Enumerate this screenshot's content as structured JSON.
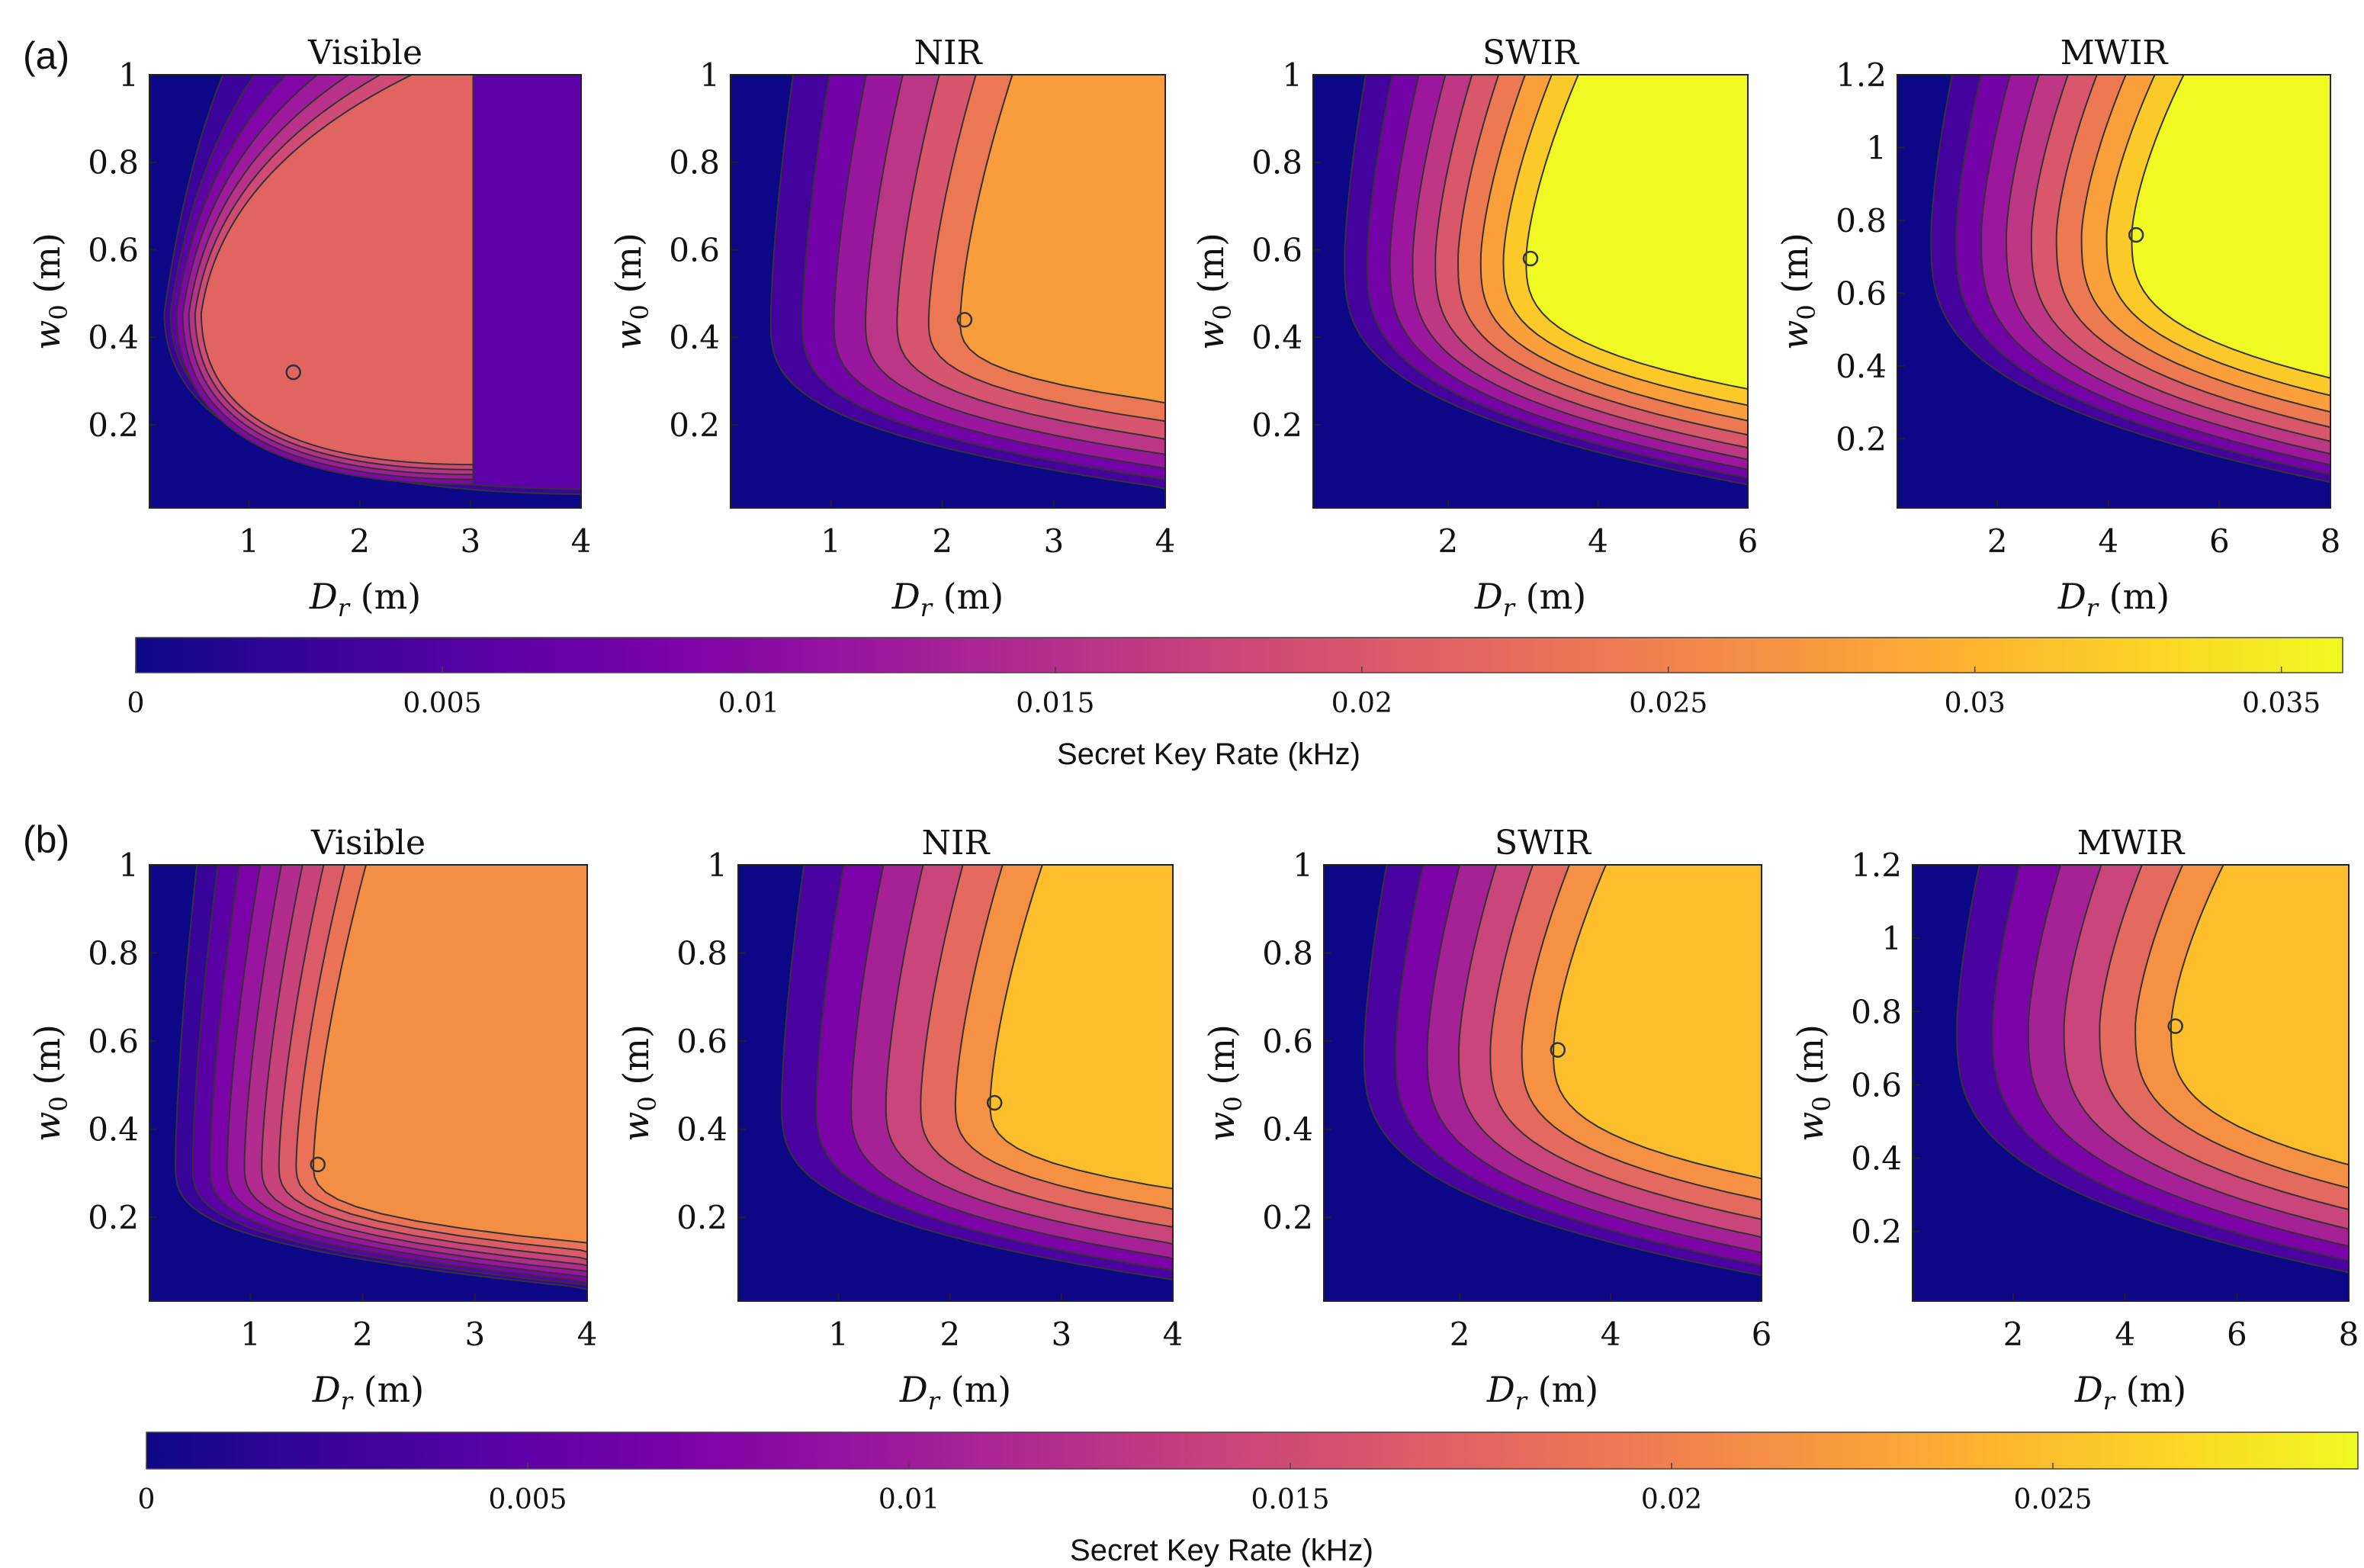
{
  "figure": {
    "panel_labels": [
      "(a)",
      "(b)"
    ],
    "axis_labels": {
      "y_base": "w",
      "y_sub": "0",
      "y_unit": "(m)",
      "x_base": "D",
      "x_sub": "r",
      "x_unit": "(m)"
    }
  },
  "colorscale": [
    "#0d0887",
    "#3a049a",
    "#5c01a6",
    "#7e03a8",
    "#9c179e",
    "#b52f8c",
    "#cc4778",
    "#de5f65",
    "#ed7953",
    "#f89540",
    "#fdb42f",
    "#fbd524",
    "#f0f921"
  ],
  "chart_data": [
    {
      "type": "heatmap",
      "panel": "(a)",
      "colorbar": {
        "label": "Secret Key Rate (kHz)",
        "range": [
          0,
          0.036
        ],
        "ticks": [
          "0",
          "0.005",
          "0.01",
          "0.015",
          "0.02",
          "0.025",
          "0.03",
          "0.035"
        ]
      },
      "subplots": [
        {
          "title": "Visible",
          "xlim": [
            0.1,
            4
          ],
          "ylim": [
            0.01,
            1
          ],
          "xticks": [
            "1",
            "2",
            "3",
            "4"
          ],
          "yticks": [
            "0.2",
            "0.4",
            "0.6",
            "0.8",
            "1"
          ],
          "levels": 7,
          "plateau": "box",
          "peak_level": 6,
          "optimum": [
            1.4,
            0.32
          ]
        },
        {
          "title": "NIR",
          "xlim": [
            0.1,
            4
          ],
          "ylim": [
            0.01,
            1
          ],
          "xticks": [
            "1",
            "2",
            "3",
            "4"
          ],
          "yticks": [
            "0.2",
            "0.4",
            "0.6",
            "0.8",
            "1"
          ],
          "levels": 7,
          "plateau": "open",
          "peak_level": 7,
          "optimum": [
            2.2,
            0.44
          ]
        },
        {
          "title": "SWIR",
          "xlim": [
            0.2,
            6
          ],
          "ylim": [
            0.01,
            1
          ],
          "xticks": [
            "2",
            "4",
            "6"
          ],
          "yticks": [
            "0.2",
            "0.4",
            "0.6",
            "0.8",
            "1"
          ],
          "levels": 9,
          "plateau": "open",
          "peak_level": 9,
          "optimum": [
            3.1,
            0.58
          ]
        },
        {
          "title": "MWIR",
          "xlim": [
            0.2,
            8
          ],
          "ylim": [
            0.01,
            1.2
          ],
          "xticks": [
            "2",
            "4",
            "6",
            "8"
          ],
          "yticks": [
            "0.2",
            "0.4",
            "0.6",
            "0.8",
            "1",
            "1.2"
          ],
          "levels": 9,
          "plateau": "open",
          "peak_level": 9,
          "optimum": [
            4.5,
            0.76
          ]
        }
      ]
    },
    {
      "type": "heatmap",
      "panel": "(b)",
      "colorbar": {
        "label": "Secret Key Rate (kHz)",
        "range": [
          0,
          0.029
        ],
        "ticks": [
          "0",
          "0.005",
          "0.01",
          "0.015",
          "0.02",
          "0.025"
        ]
      },
      "subplots": [
        {
          "title": "Visible",
          "xlim": [
            0.1,
            4
          ],
          "ylim": [
            0.01,
            1
          ],
          "xticks": [
            "1",
            "2",
            "3",
            "4"
          ],
          "yticks": [
            "0.2",
            "0.4",
            "0.6",
            "0.8",
            "1"
          ],
          "levels": 9,
          "plateau": "wide",
          "peak_level": 8,
          "optimum": [
            1.6,
            0.32
          ]
        },
        {
          "title": "NIR",
          "xlim": [
            0.1,
            4
          ],
          "ylim": [
            0.01,
            1
          ],
          "xticks": [
            "1",
            "2",
            "3",
            "4"
          ],
          "yticks": [
            "0.2",
            "0.4",
            "0.6",
            "0.8",
            "1"
          ],
          "levels": 7,
          "plateau": "open",
          "peak_level": 9,
          "optimum": [
            2.4,
            0.46
          ]
        },
        {
          "title": "SWIR",
          "xlim": [
            0.2,
            6
          ],
          "ylim": [
            0.01,
            1
          ],
          "xticks": [
            "2",
            "4",
            "6"
          ],
          "yticks": [
            "0.2",
            "0.4",
            "0.6",
            "0.8",
            "1"
          ],
          "levels": 7,
          "plateau": "open",
          "peak_level": 9,
          "optimum": [
            3.3,
            0.58
          ]
        },
        {
          "title": "MWIR",
          "xlim": [
            0.2,
            8
          ],
          "ylim": [
            0.01,
            1.2
          ],
          "xticks": [
            "2",
            "4",
            "6",
            "8"
          ],
          "yticks": [
            "0.2",
            "0.4",
            "0.6",
            "0.8",
            "1",
            "1.2"
          ],
          "levels": 7,
          "plateau": "open",
          "peak_level": 9,
          "optimum": [
            4.9,
            0.76
          ]
        }
      ]
    }
  ]
}
